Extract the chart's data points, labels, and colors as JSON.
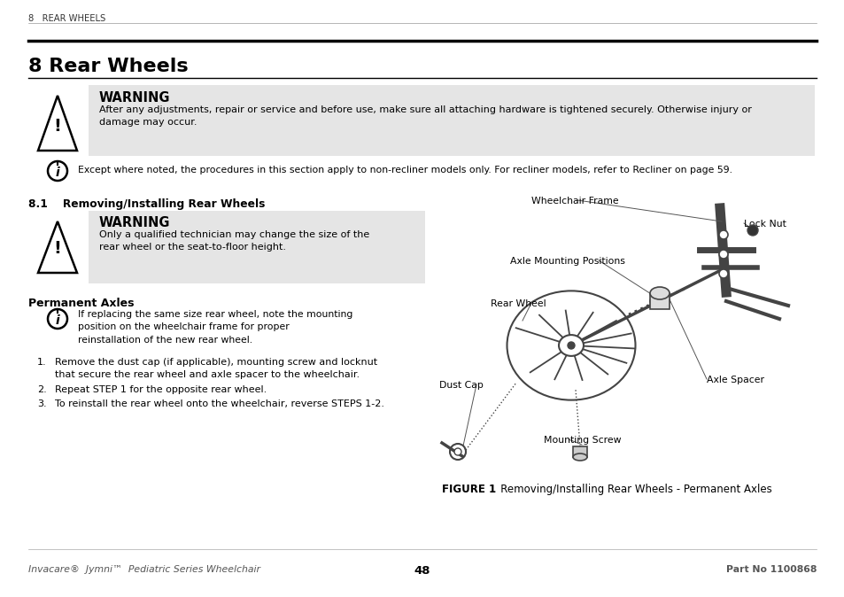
{
  "bg_color": "#ffffff",
  "header_small": "8   REAR WHEELS",
  "title": "8 Rear Wheels",
  "warning1_title": "WARNING",
  "warning1_text": "After any adjustments, repair or service and before use, make sure all attaching hardware is tightened securely. Otherwise injury or\ndamage may occur.",
  "info_text": "Except where noted, the procedures in this section apply to non-recliner models only. For recliner models, refer to Recliner on page 59.",
  "info_recliner_underline": "Recliner",
  "section_title": "8.1    Removing/Installing Rear Wheels",
  "warning2_title": "WARNING",
  "warning2_text": "Only a qualified technician may change the size of the\nrear wheel or the seat-to-floor height.",
  "perm_axles_title": "Permanent Axles",
  "info2_text": "If replacing the same size rear wheel, note the mounting\nposition on the wheelchair frame for proper\nreinstallation of the new rear wheel.",
  "step1_num": "1.",
  "step1_text": "Remove the dust cap (if applicable), mounting screw and locknut\nthat secure the rear wheel and axle spacer to the wheelchair.",
  "step2_num": "2.",
  "step2_text": "Repeat STEP 1 for the opposite rear wheel.",
  "step3_num": "3.",
  "step3_text": "To reinstall the rear wheel onto the wheelchair, reverse STEPS 1-2.",
  "figure_label": "FIGURE 1",
  "figure_caption": "   Removing/Installing Rear Wheels - Permanent Axles",
  "footer_left": "Invacare®  Jymni™  Pediatric Series Wheelchair",
  "footer_center": "48",
  "footer_right": "Part No 1100868",
  "diagram_labels": {
    "wheelchair_frame": "Wheelchair Frame",
    "lock_nut": "Lock Nut",
    "axle_mounting": "Axle Mounting Positions",
    "rear_wheel": "Rear Wheel",
    "dust_cap": "Dust Cap",
    "axle_spacer": "Axle Spacer",
    "mounting_screw": "Mounting Screw"
  },
  "warning_bg": "#e5e5e5",
  "text_color": "#000000",
  "gray_color": "#555555",
  "diagram_color": "#444444"
}
